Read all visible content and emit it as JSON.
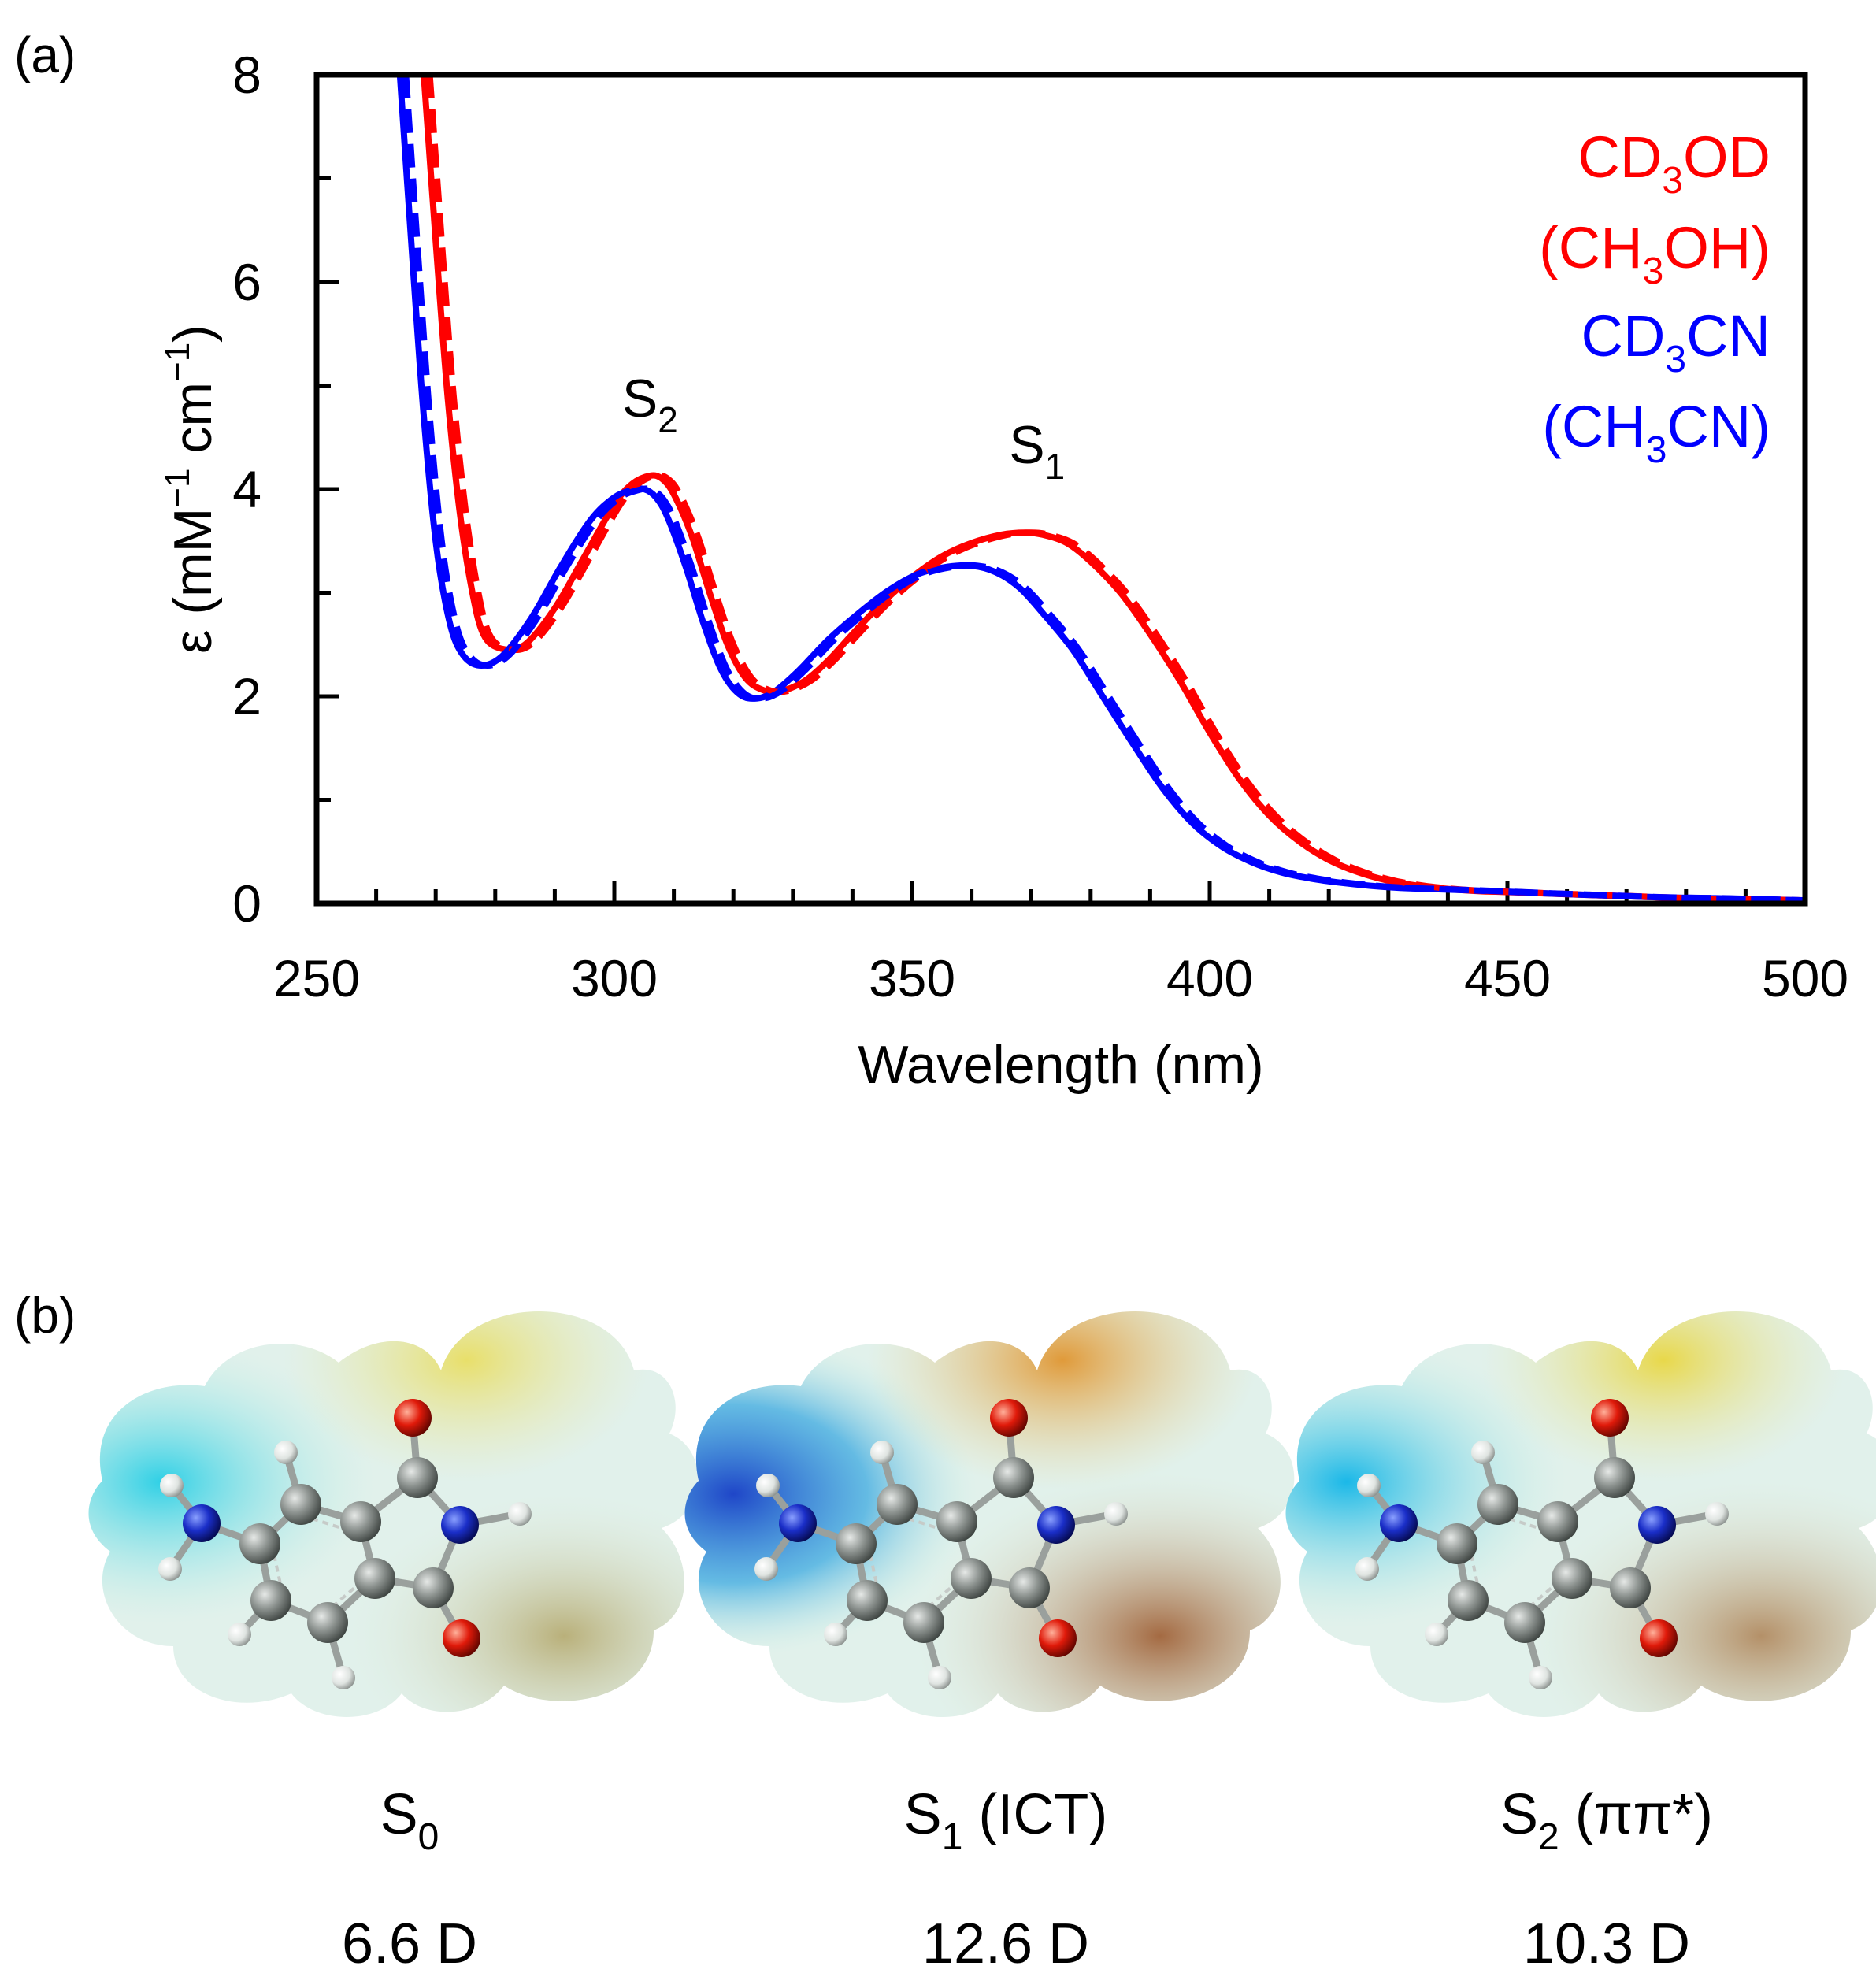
{
  "panel_a": {
    "label": "(a)",
    "chart_data": {
      "type": "line",
      "xlabel": "Wavelength (nm)",
      "ylabel": {
        "prefix": "ε (mM",
        "exp1": "−1",
        "mid": " cm",
        "exp2": "−1",
        "suffix": ")"
      },
      "xlim": [
        250,
        500
      ],
      "ylim": [
        0,
        8
      ],
      "xticks": [
        "250",
        "300",
        "350",
        "400",
        "450",
        "500"
      ],
      "xtick_values": [
        250,
        300,
        350,
        400,
        450,
        500
      ],
      "yticks": [
        "0",
        "2",
        "4",
        "6",
        "8"
      ],
      "ytick_values": [
        0,
        2,
        4,
        6,
        8
      ],
      "x_minor_step": 10,
      "y_minor_step": 1,
      "peak_labels": [
        {
          "name": "peak-label-s2",
          "base": "S",
          "sub": "2",
          "x": 306,
          "y": 4.7
        },
        {
          "name": "peak-label-s1",
          "base": "S",
          "sub": "1",
          "x": 371,
          "y": 4.25
        }
      ],
      "legend": [
        {
          "base": "CD",
          "sub": "3",
          "rest": "OD",
          "color": "#ff0000"
        },
        {
          "base": "(CH",
          "sub": "3",
          "rest": "OH)",
          "color": "#ff0000"
        },
        {
          "base": "CD",
          "sub": "3",
          "rest": "CN",
          "color": "#0000ff"
        },
        {
          "base": "(CH",
          "sub": "3",
          "rest": "CN)",
          "color": "#0000ff"
        }
      ],
      "legend_position": "top-right",
      "series": [
        {
          "name": "CD3OD",
          "color": "#ff0000",
          "dash": "solid",
          "x": [
            268,
            270,
            272,
            274,
            276,
            278,
            281,
            285,
            290,
            295,
            300,
            303,
            306,
            308,
            310,
            313,
            316,
            319,
            322,
            325,
            328,
            332,
            336,
            340,
            345,
            350,
            355,
            360,
            365,
            369,
            372,
            376,
            380,
            385,
            390,
            395,
            400,
            405,
            410,
            415,
            420,
            425,
            430,
            435,
            440,
            445,
            450,
            460,
            470,
            480,
            490,
            500
          ],
          "y": [
            8.0,
            6.4,
            4.9,
            3.8,
            3.05,
            2.6,
            2.46,
            2.5,
            2.85,
            3.35,
            3.85,
            4.05,
            4.13,
            4.1,
            3.95,
            3.55,
            3.0,
            2.5,
            2.18,
            2.06,
            2.05,
            2.15,
            2.35,
            2.6,
            2.9,
            3.15,
            3.35,
            3.48,
            3.56,
            3.58,
            3.56,
            3.48,
            3.3,
            3.0,
            2.6,
            2.15,
            1.65,
            1.2,
            0.85,
            0.6,
            0.42,
            0.3,
            0.22,
            0.17,
            0.14,
            0.12,
            0.11,
            0.09,
            0.07,
            0.05,
            0.04,
            0.03
          ]
        },
        {
          "name": "(CH3OH)",
          "color": "#ff0000",
          "dash": "dashed",
          "x": [
            269,
            271,
            273,
            275,
            277,
            279,
            282,
            286,
            291,
            296,
            301,
            304,
            307,
            309,
            311,
            314,
            317,
            320,
            323,
            326,
            329,
            333,
            337,
            341,
            346,
            351,
            356,
            361,
            366,
            370,
            373,
            377,
            381,
            386,
            391,
            396,
            401,
            406,
            411,
            416,
            421,
            426,
            431,
            436,
            441,
            446,
            451,
            461,
            471,
            481,
            491,
            500
          ],
          "y": [
            8.0,
            6.4,
            4.9,
            3.8,
            3.05,
            2.6,
            2.46,
            2.5,
            2.85,
            3.35,
            3.85,
            4.05,
            4.13,
            4.1,
            3.95,
            3.55,
            3.0,
            2.5,
            2.18,
            2.06,
            2.05,
            2.15,
            2.35,
            2.6,
            2.9,
            3.15,
            3.35,
            3.48,
            3.56,
            3.58,
            3.56,
            3.48,
            3.3,
            3.0,
            2.6,
            2.15,
            1.65,
            1.2,
            0.85,
            0.6,
            0.42,
            0.3,
            0.22,
            0.17,
            0.14,
            0.12,
            0.11,
            0.09,
            0.07,
            0.05,
            0.04,
            0.03
          ]
        },
        {
          "name": "CD3CN",
          "color": "#0000ff",
          "dash": "solid",
          "x": [
            264,
            266,
            268,
            270,
            272,
            274,
            277,
            281,
            286,
            291,
            296,
            300,
            303,
            305,
            307,
            309,
            312,
            315,
            318,
            321,
            324,
            327,
            331,
            336,
            341,
            346,
            351,
            356,
            360,
            364,
            368,
            372,
            377,
            382,
            387,
            392,
            397,
            402,
            407,
            412,
            417,
            422,
            427,
            432,
            437,
            442,
            447,
            455,
            465,
            475,
            485,
            500
          ],
          "y": [
            8.0,
            6.3,
            4.7,
            3.5,
            2.8,
            2.45,
            2.3,
            2.38,
            2.75,
            3.25,
            3.7,
            3.92,
            3.99,
            4.0,
            3.92,
            3.72,
            3.25,
            2.7,
            2.25,
            2.02,
            1.98,
            2.05,
            2.25,
            2.55,
            2.8,
            3.02,
            3.18,
            3.25,
            3.26,
            3.2,
            3.05,
            2.8,
            2.45,
            2.0,
            1.55,
            1.12,
            0.78,
            0.55,
            0.4,
            0.3,
            0.24,
            0.2,
            0.17,
            0.15,
            0.14,
            0.13,
            0.12,
            0.1,
            0.08,
            0.06,
            0.05,
            0.03
          ]
        },
        {
          "name": "(CH3CN)",
          "color": "#0000ff",
          "dash": "dashed",
          "x": [
            265,
            267,
            269,
            271,
            273,
            275,
            278,
            282,
            287,
            292,
            297,
            301,
            304,
            306,
            308,
            310,
            313,
            316,
            319,
            322,
            325,
            328,
            332,
            337,
            342,
            347,
            352,
            357,
            361,
            365,
            369,
            373,
            378,
            383,
            388,
            393,
            398,
            403,
            408,
            413,
            418,
            423,
            428,
            433,
            438,
            443,
            448,
            456,
            466,
            476,
            486,
            500
          ],
          "y": [
            8.0,
            6.3,
            4.7,
            3.5,
            2.8,
            2.45,
            2.3,
            2.38,
            2.75,
            3.25,
            3.7,
            3.92,
            3.99,
            4.0,
            3.92,
            3.72,
            3.25,
            2.7,
            2.25,
            2.02,
            1.98,
            2.05,
            2.25,
            2.55,
            2.8,
            3.02,
            3.18,
            3.25,
            3.26,
            3.2,
            3.05,
            2.8,
            2.45,
            2.0,
            1.55,
            1.12,
            0.78,
            0.55,
            0.4,
            0.3,
            0.24,
            0.2,
            0.17,
            0.15,
            0.14,
            0.13,
            0.12,
            0.1,
            0.08,
            0.06,
            0.05,
            0.03
          ]
        }
      ]
    }
  },
  "panel_b": {
    "label": "(b)",
    "molecules": [
      {
        "state_base": "S",
        "state_sub": "0",
        "state_rest": "",
        "dipole": "6.6 D",
        "field_variant": "s0"
      },
      {
        "state_base": "S",
        "state_sub": "1",
        "state_rest": " (ICT)",
        "dipole": "12.6 D",
        "field_variant": "s1"
      },
      {
        "state_base": "S",
        "state_sub": "2",
        "state_rest": " (ππ*)",
        "dipole": "10.3 D",
        "field_variant": "s2"
      }
    ]
  },
  "colors": {
    "red": "#ff0000",
    "blue": "#0000ff",
    "carbon": "#8a8f8c",
    "nitrogen": "#1a2ec8",
    "oxygen": "#e01a0a",
    "hydrogen": "#e8ece9"
  }
}
